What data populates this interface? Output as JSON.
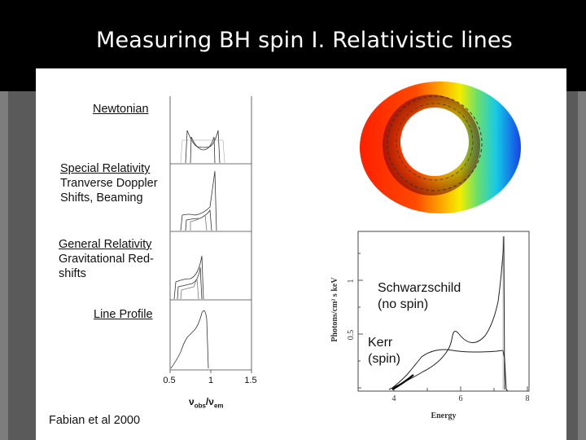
{
  "slide": {
    "title": "Measuring BH spin I. Relativistic lines",
    "credit": "Fabian et al 2000"
  },
  "left_figure": {
    "panels": [
      {
        "label": "Newtonian"
      },
      {
        "label": "Special Relativity\nTranverse Doppler\nShifts, Beaming"
      },
      {
        "label": "General Relativity\nGravitational Red-\nshifts"
      },
      {
        "label": "Line Profile"
      }
    ],
    "x_ticks": [
      "0.5",
      "1",
      "1.5"
    ],
    "x_axis_label_main": "ν",
    "x_axis_label_sub1": "obs",
    "x_axis_label_mid": "/ν",
    "x_axis_label_sub2": "em"
  },
  "disk_image": {
    "colors": {
      "approaching_side": "#1f3fe0",
      "receding_side": "#ff2a00"
    }
  },
  "right_figure": {
    "ylabel": "Photons/cm² s keV",
    "xlabel": "Energy",
    "y_ticks": [
      "0.5",
      "1"
    ],
    "x_ticks": [
      "4",
      "6",
      "8"
    ],
    "annotation_schwarzschild": "Schwarzschild\n(no spin)",
    "annotation_kerr": "Kerr\n(spin)"
  }
}
